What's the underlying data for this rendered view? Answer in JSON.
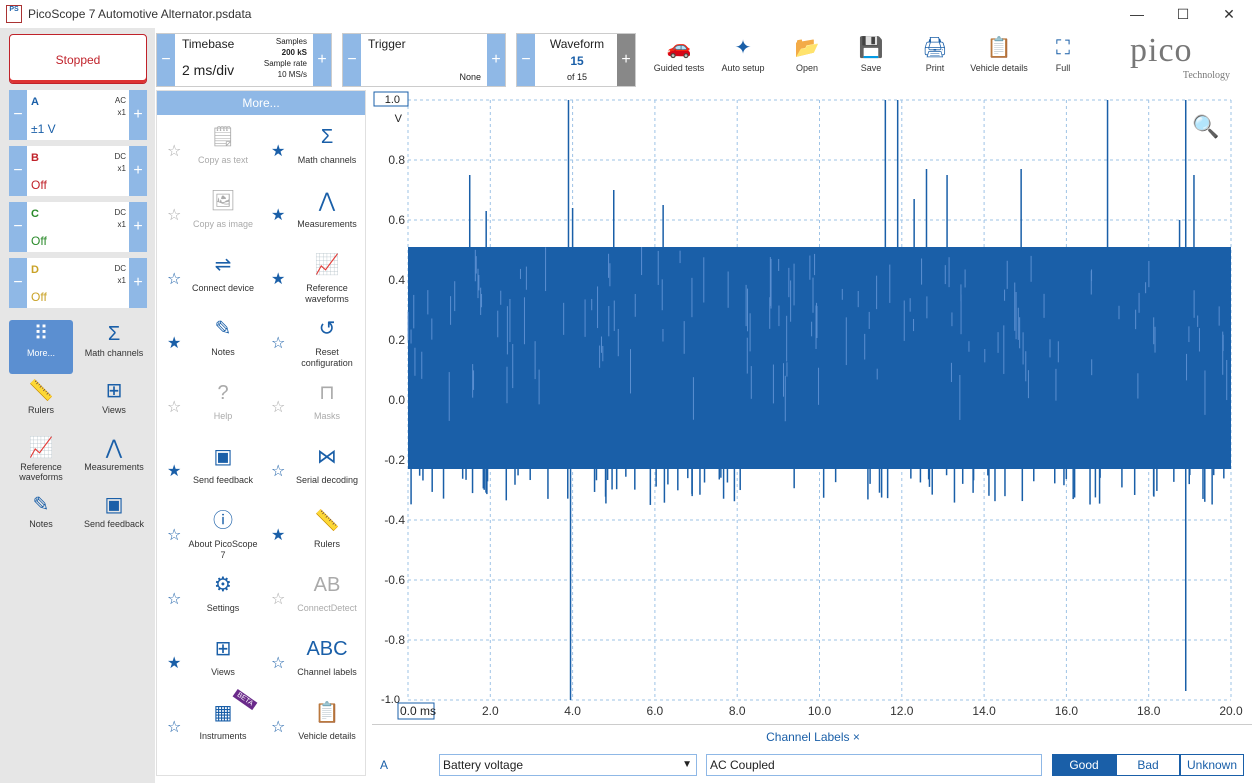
{
  "window": {
    "app_icon_text": "PS",
    "title": "PicoScope 7 Automotive Alternator.psdata",
    "minimize": "—",
    "maximize": "☐",
    "close": "✕"
  },
  "run": {
    "status": "Stopped"
  },
  "channels": [
    {
      "name": "A",
      "coupling": "AC",
      "probe": "x1",
      "range": "±1 V",
      "color": "#1a5fa8"
    },
    {
      "name": "B",
      "coupling": "DC",
      "probe": "x1",
      "range": "Off",
      "color": "#c0222a"
    },
    {
      "name": "C",
      "coupling": "DC",
      "probe": "x1",
      "range": "Off",
      "color": "#2a8a2a"
    },
    {
      "name": "D",
      "coupling": "DC",
      "probe": "x1",
      "range": "Off",
      "color": "#c9a227"
    }
  ],
  "left_tools": [
    {
      "label": "More...",
      "icon": "grid-dots-icon"
    },
    {
      "label": "Math channels",
      "icon": "sigma-icon"
    },
    {
      "label": "Rulers",
      "icon": "ruler-icon"
    },
    {
      "label": "Views",
      "icon": "views-icon"
    },
    {
      "label": "Reference waveforms",
      "icon": "reference-waveform-icon"
    },
    {
      "label": "Measurements",
      "icon": "compass-icon"
    },
    {
      "label": "Notes",
      "icon": "notes-icon"
    },
    {
      "label": "Send feedback",
      "icon": "feedback-icon"
    }
  ],
  "timebase": {
    "label": "Timebase",
    "value": "2 ms/div",
    "samples_label": "Samples",
    "samples": "200 kS",
    "rate_label": "Sample rate",
    "rate": "10 MS/s"
  },
  "trigger": {
    "label": "Trigger",
    "mode": "None"
  },
  "waveform": {
    "label": "Waveform",
    "current": "15",
    "total": "of 15"
  },
  "toolbar": [
    {
      "label": "Guided tests",
      "icon": "car-icon"
    },
    {
      "label": "Auto setup",
      "icon": "auto-setup-icon"
    },
    {
      "label": "Open",
      "icon": "folder-icon"
    },
    {
      "label": "Save",
      "icon": "save-icon"
    },
    {
      "label": "Print",
      "icon": "print-icon"
    },
    {
      "label": "Vehicle details",
      "icon": "clipboard-icon"
    },
    {
      "label": "Full",
      "icon": "fullscreen-icon"
    }
  ],
  "logo": {
    "text": "pico",
    "sub": "Technology"
  },
  "more_panel": {
    "title": "More...",
    "items": [
      {
        "label": "Copy as text",
        "icon": "copy-text-icon",
        "starred": false,
        "disabled": true
      },
      {
        "label": "Math channels",
        "icon": "sigma-icon",
        "starred": true,
        "disabled": false
      },
      {
        "label": "Copy as image",
        "icon": "copy-image-icon",
        "starred": false,
        "disabled": true
      },
      {
        "label": "Measurements",
        "icon": "compass-icon",
        "starred": true,
        "disabled": false
      },
      {
        "label": "Connect device",
        "icon": "usb-icon",
        "starred": false,
        "disabled": false
      },
      {
        "label": "Reference waveforms",
        "icon": "reference-waveform-icon",
        "starred": true,
        "disabled": false
      },
      {
        "label": "Notes",
        "icon": "notes-icon",
        "starred": true,
        "disabled": false
      },
      {
        "label": "Reset configuration",
        "icon": "reset-icon",
        "starred": false,
        "disabled": false
      },
      {
        "label": "Help",
        "icon": "help-icon",
        "starred": false,
        "disabled": true
      },
      {
        "label": "Masks",
        "icon": "mask-icon",
        "starred": false,
        "disabled": true
      },
      {
        "label": "Send feedback",
        "icon": "feedback-icon",
        "starred": true,
        "disabled": false
      },
      {
        "label": "Serial decoding",
        "icon": "serial-decoding-icon",
        "starred": false,
        "disabled": false
      },
      {
        "label": "About PicoScope 7",
        "icon": "info-icon",
        "starred": false,
        "disabled": false
      },
      {
        "label": "Rulers",
        "icon": "ruler-icon",
        "starred": true,
        "disabled": false
      },
      {
        "label": "Settings",
        "icon": "gear-icon",
        "starred": false,
        "disabled": false
      },
      {
        "label": "ConnectDetect",
        "icon": "connect-detect-icon",
        "starred": false,
        "disabled": true
      },
      {
        "label": "Views",
        "icon": "views-icon",
        "starred": true,
        "disabled": false
      },
      {
        "label": "Channel labels",
        "icon": "channel-labels-icon",
        "starred": false,
        "disabled": false
      },
      {
        "label": "Instruments",
        "icon": "instruments-icon",
        "starred": false,
        "disabled": false,
        "badge": "BETA"
      },
      {
        "label": "Vehicle details",
        "icon": "clipboard-icon",
        "starred": false,
        "disabled": false
      }
    ]
  },
  "chart_data": {
    "type": "line",
    "series": [
      {
        "name": "A",
        "color": "#1a5fa8"
      }
    ],
    "xlabel": "ms",
    "ylabel": "V",
    "xlim": [
      0,
      20
    ],
    "ylim": [
      -1,
      1
    ],
    "x_ticks": [
      "0.0",
      "2.0",
      "4.0",
      "6.0",
      "8.0",
      "10.0",
      "12.0",
      "14.0",
      "16.0",
      "18.0",
      "20.0"
    ],
    "y_ticks": [
      "1.0",
      "0.8",
      "0.6",
      "0.4",
      "0.2",
      "0.0",
      "-0.2",
      "-0.4",
      "-0.6",
      "-0.8",
      "-1.0"
    ],
    "band": {
      "x_start": 0,
      "x_end": 20,
      "y_high": 0.51,
      "y_low": -0.23
    },
    "spikes": [
      {
        "x": 1.5,
        "y": 0.75
      },
      {
        "x": 1.9,
        "y": 0.63
      },
      {
        "x": 3.9,
        "y": 1.0
      },
      {
        "x": 3.95,
        "y": -1.0
      },
      {
        "x": 4.0,
        "y": 0.64
      },
      {
        "x": 5.0,
        "y": 0.7
      },
      {
        "x": 6.2,
        "y": 0.65
      },
      {
        "x": 11.6,
        "y": 1.0
      },
      {
        "x": 11.9,
        "y": 1.0
      },
      {
        "x": 12.3,
        "y": 0.67
      },
      {
        "x": 12.6,
        "y": 0.77
      },
      {
        "x": 13.1,
        "y": 0.75
      },
      {
        "x": 14.9,
        "y": 0.77
      },
      {
        "x": 17.0,
        "y": 1.0
      },
      {
        "x": 18.9,
        "y": 1.0
      },
      {
        "x": 18.9,
        "y": -0.97
      },
      {
        "x": 19.1,
        "y": 0.75
      },
      {
        "x": 18.75,
        "y": 0.6
      }
    ],
    "grid": true,
    "axis_units": {
      "x_start_label": "0.0 ms",
      "y_unit": "V"
    }
  },
  "channel_labels": {
    "tab": "Channel Labels",
    "close": "×",
    "channel": "A",
    "label": "Battery voltage",
    "note": "AC Coupled",
    "ratings": [
      "Good",
      "Bad",
      "Unknown"
    ],
    "selected_rating": "Good"
  }
}
